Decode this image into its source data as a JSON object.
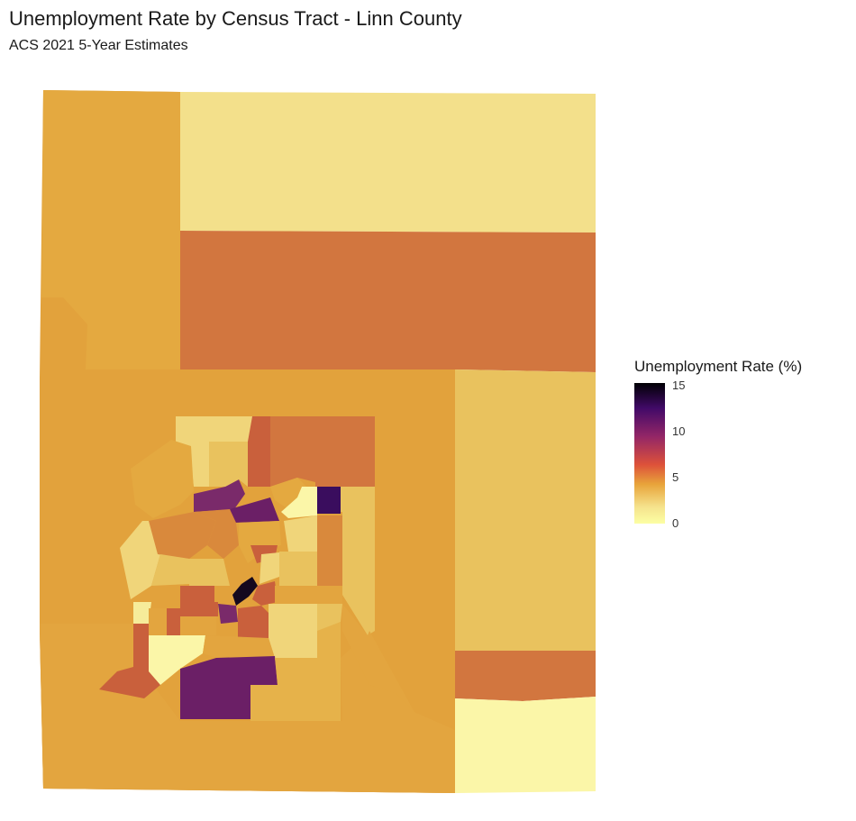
{
  "title": "Unemployment Rate by Census Tract - Linn County",
  "subtitle": "ACS 2021 5-Year Estimates",
  "legend": {
    "title": "Unemployment Rate (%)",
    "ticks": [
      "15",
      "10",
      "5",
      "0"
    ],
    "range": [
      0,
      15
    ],
    "palette": "inferno (reversed)"
  },
  "colors": {
    "dark": "#14081e",
    "purple": "#6b1f66",
    "purple2": "#7a2a6a",
    "rust": "#c9603c",
    "orange": "#d2763f",
    "amber": "#e2a23c",
    "gold": "#e6b24a",
    "lightgold": "#e9c25e",
    "pale": "#f3e08b",
    "cream": "#fbf6a8"
  }
}
